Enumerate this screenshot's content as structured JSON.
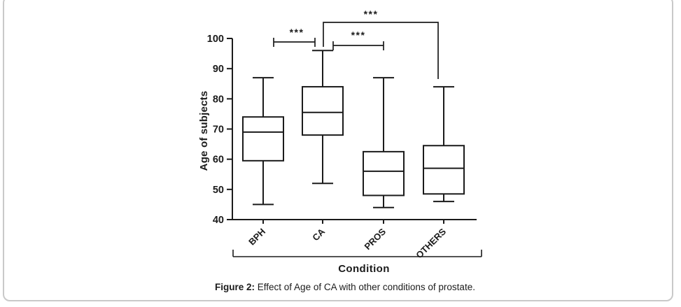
{
  "figure": {
    "caption_prefix": "Figure 2:",
    "caption_text": " Effect of Age of CA with other conditions of prostate."
  },
  "chart_data": {
    "type": "box",
    "title": "",
    "xlabel": "Condition",
    "ylabel": "Age of subjects",
    "ylim": [
      40,
      100
    ],
    "yticks": [
      40,
      50,
      60,
      70,
      80,
      90,
      100
    ],
    "categories": [
      "BPH",
      "CA",
      "PROS",
      "OTHERS"
    ],
    "boxes": [
      {
        "category": "BPH",
        "whisker_low": 45,
        "q1": 59.5,
        "median": 69,
        "q3": 74,
        "whisker_high": 87
      },
      {
        "category": "CA",
        "whisker_low": 52,
        "q1": 68,
        "median": 75.5,
        "q3": 84,
        "whisker_high": 96
      },
      {
        "category": "PROS",
        "whisker_low": 44,
        "q1": 48,
        "median": 56,
        "q3": 62.5,
        "whisker_high": 87
      },
      {
        "category": "OTHERS",
        "whisker_low": 46,
        "q1": 48.5,
        "median": 57,
        "q3": 64.5,
        "whisker_high": 84
      }
    ],
    "significance": [
      {
        "groups": [
          "BPH",
          "CA"
        ],
        "label": "***"
      },
      {
        "groups": [
          "CA",
          "PROS"
        ],
        "label": "***"
      },
      {
        "groups": [
          "CA",
          "OTHERS"
        ],
        "label": "***"
      }
    ],
    "grid": false,
    "legend": "none",
    "colors": {
      "line": "#1b1b1b",
      "box_fill": "#ffffff",
      "card_border": "#c9c9c9"
    }
  }
}
